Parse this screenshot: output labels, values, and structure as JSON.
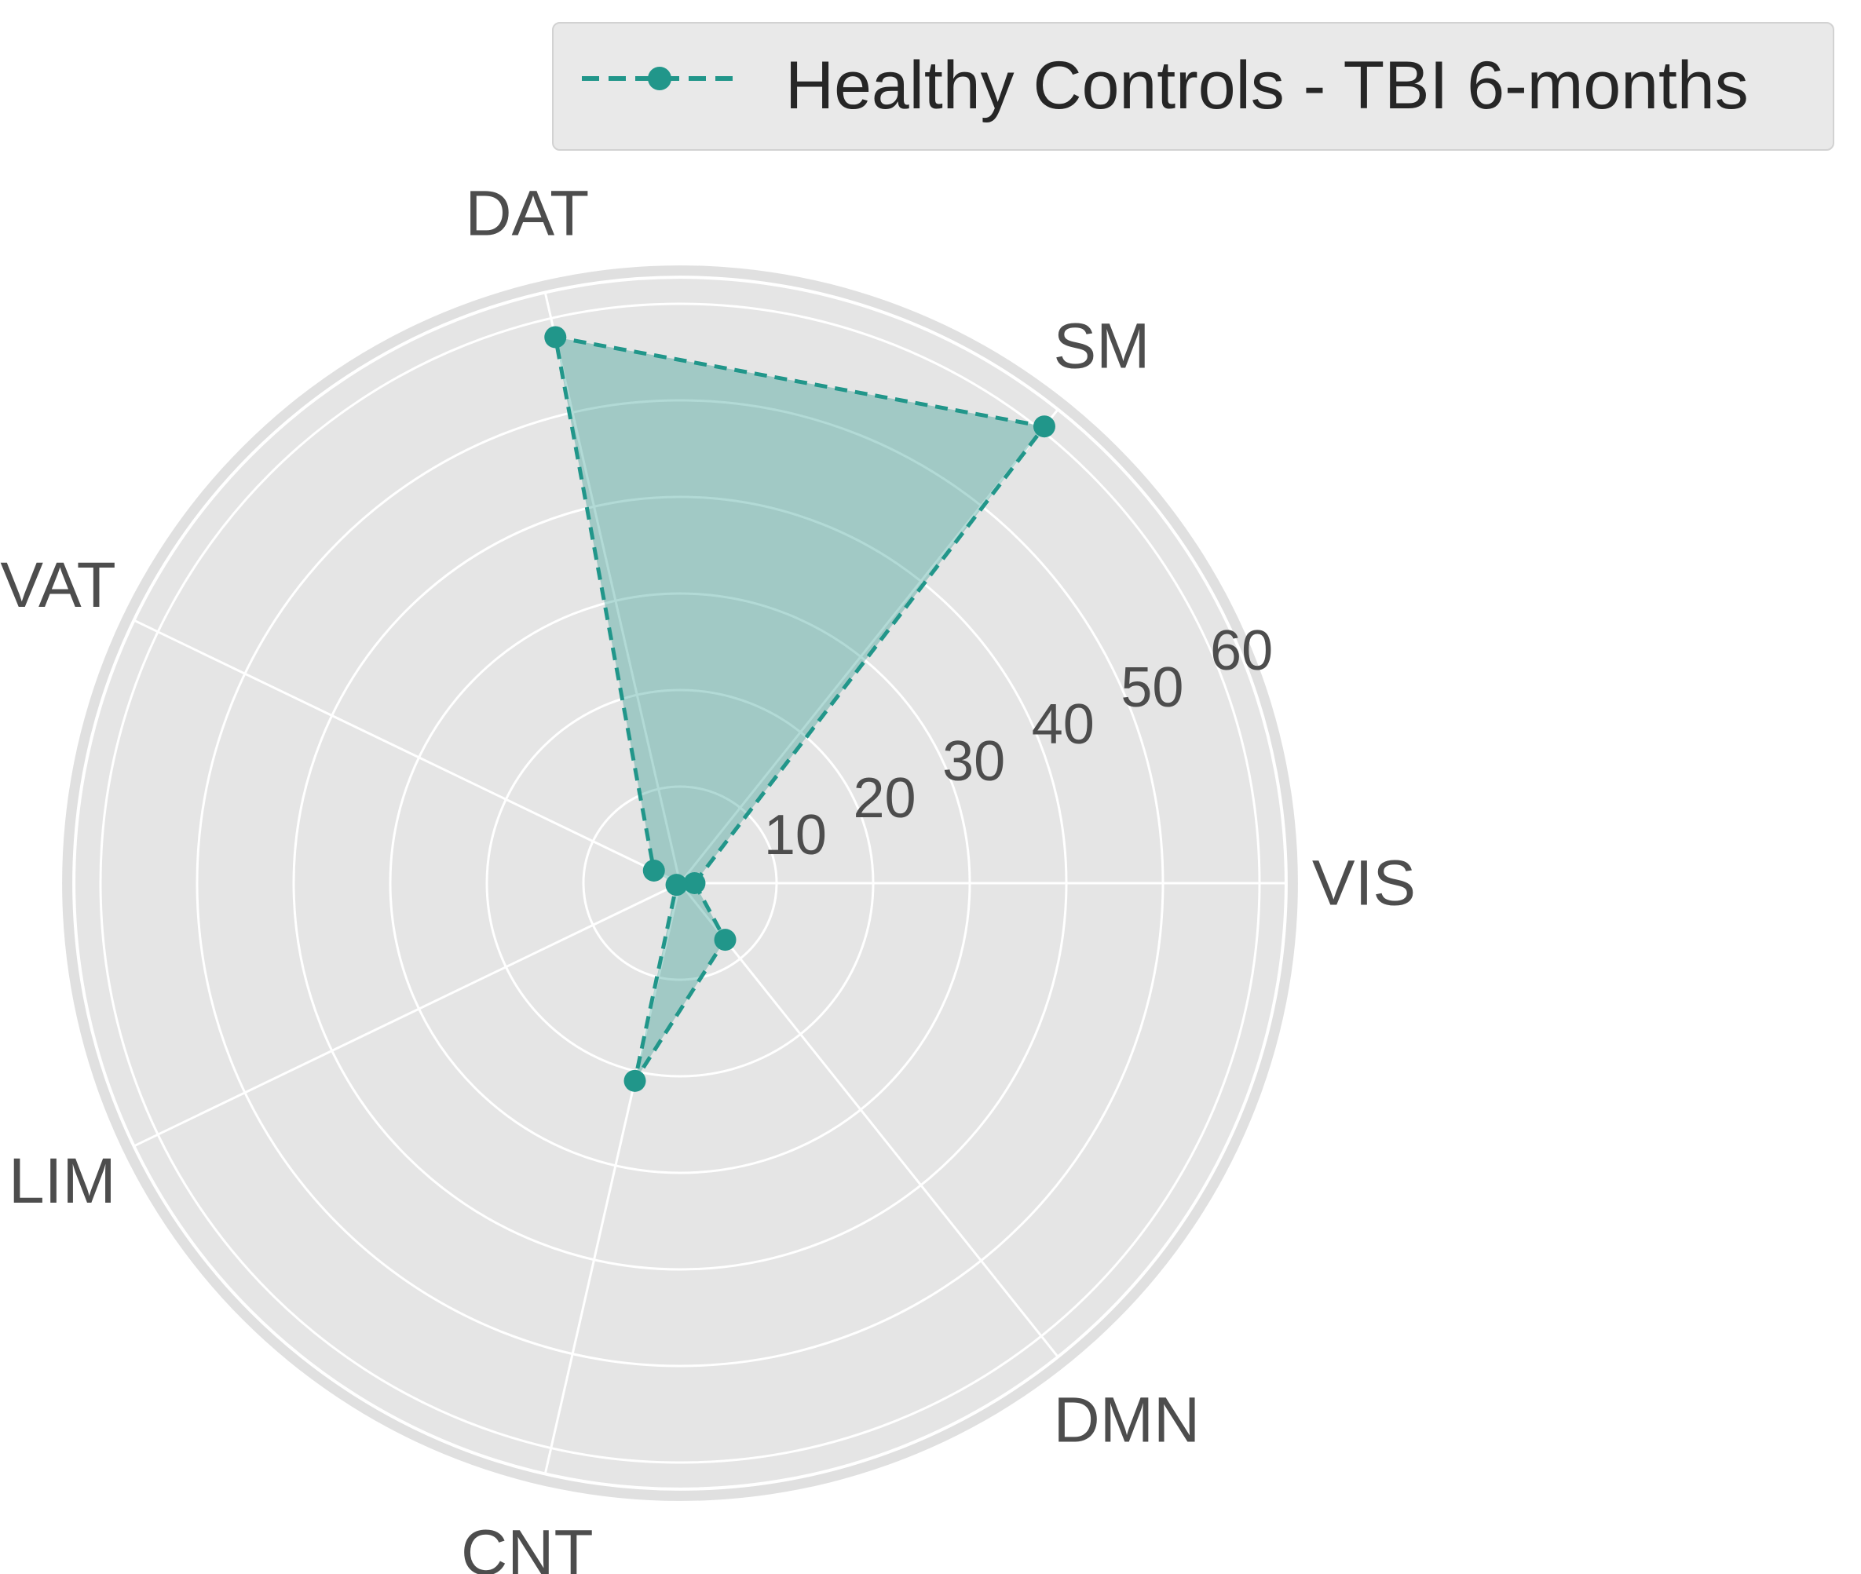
{
  "chart_data": {
    "type": "radar",
    "categories": [
      "VIS",
      "SM",
      "DAT",
      "VAT",
      "LIM",
      "CNT",
      "DMN"
    ],
    "series": [
      {
        "name": "Healthy Controls - TBI 6-months",
        "values": [
          1.5,
          60.5,
          58.0,
          3.0,
          0.4,
          21.0,
          7.5
        ]
      }
    ],
    "r_ticks": [
      "10",
      "20",
      "30",
      "40",
      "50",
      "60"
    ],
    "r_tick_values": [
      10,
      20,
      30,
      40,
      50,
      60
    ],
    "rlim": [
      0,
      63
    ],
    "grid": true,
    "legend_position": "top-right",
    "colors": {
      "series": "#21968a",
      "fill": "#21968a",
      "background": "#e5e5e5",
      "outer_ring": "#e0e0e0",
      "grid": "#ffffff"
    },
    "line_style": "dashed",
    "marker": "circle"
  }
}
